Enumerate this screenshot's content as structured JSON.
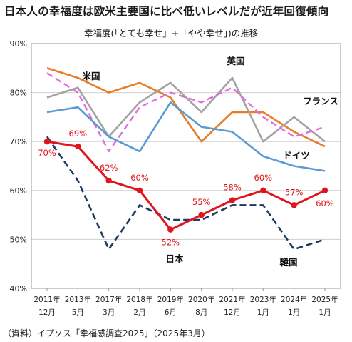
{
  "title": "日本人の幸福度は欧米主要国に比べ低いレベルだが近年回復傾向",
  "subtitle": "幸福度(「とても幸せ」+「やや幸せ」)の推移",
  "source": "（資料）イプソス「幸福感調査2025」（2025年3月）",
  "chart_data": {
    "type": "line",
    "x_top": [
      "2011年",
      "2013年",
      "2017年",
      "2018年",
      "2019年",
      "2020年",
      "2021年",
      "2023年",
      "2024年",
      "2025年"
    ],
    "x_bottom": [
      "12月",
      "5月",
      "3月",
      "2月",
      "6月",
      "8月",
      "12月",
      "1月",
      "1月",
      "1月"
    ],
    "y_ticks": [
      "40%",
      "50%",
      "60%",
      "70%",
      "80%",
      "90%"
    ],
    "ylim": [
      40,
      90
    ],
    "grid": true,
    "series": [
      {
        "name": "フランス",
        "color": "#e87d26",
        "dash": "solid",
        "width": 2.6,
        "values": [
          85,
          83,
          80,
          82,
          79,
          70,
          76,
          76,
          72,
          69
        ]
      },
      {
        "name": "英国",
        "color": "#a3a3a3",
        "dash": "solid",
        "width": 2.6,
        "values": [
          79,
          81,
          71,
          78,
          82,
          76,
          83,
          70,
          75,
          70
        ]
      },
      {
        "name": "米国",
        "color": "#e36be0",
        "dash": "dashed",
        "width": 2.4,
        "values": [
          84,
          80,
          68,
          77,
          80,
          78,
          81,
          75,
          71,
          73
        ]
      },
      {
        "name": "ドイツ",
        "color": "#5b9bd5",
        "dash": "solid",
        "width": 2.6,
        "values": [
          76,
          77,
          71,
          68,
          78,
          73,
          72,
          67,
          65,
          64
        ]
      },
      {
        "name": "韓国",
        "color": "#203864",
        "dash": "dashed",
        "width": 2.6,
        "values": [
          71,
          62,
          48,
          57,
          54,
          54,
          57,
          57,
          48,
          50
        ]
      },
      {
        "name": "日本",
        "color": "#e0151c",
        "dash": "solid",
        "width": 3,
        "markers": true,
        "values": [
          70,
          69,
          62,
          60,
          52,
          55,
          58,
          60,
          57,
          60
        ]
      }
    ],
    "data_labels": [
      "70%",
      "69%",
      "62%",
      "60%",
      "52%",
      "55%",
      "58%",
      "60%",
      "57%",
      "60%"
    ],
    "series_labels": [
      "米国",
      "英国",
      "フランス",
      "ドイツ",
      "日本",
      "韓国"
    ]
  }
}
